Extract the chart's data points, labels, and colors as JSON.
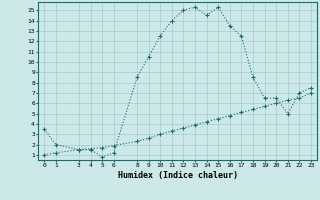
{
  "curve1_x": [
    0,
    1,
    3,
    4,
    5,
    6,
    8,
    9,
    10,
    11,
    12,
    13,
    14,
    15,
    16,
    17,
    18,
    19,
    20,
    21,
    22,
    23
  ],
  "curve1_y": [
    3.5,
    2.0,
    1.5,
    1.5,
    0.8,
    1.2,
    8.5,
    10.5,
    12.5,
    14.0,
    15.0,
    15.3,
    14.5,
    15.3,
    13.5,
    12.5,
    8.5,
    6.5,
    6.5,
    5.0,
    7.0,
    7.5
  ],
  "curve2_x": [
    0,
    1,
    3,
    4,
    5,
    6,
    8,
    9,
    10,
    11,
    12,
    13,
    14,
    15,
    16,
    17,
    18,
    19,
    20,
    21,
    22,
    23
  ],
  "curve2_y": [
    1.0,
    1.2,
    1.5,
    1.6,
    1.7,
    1.9,
    2.3,
    2.6,
    3.0,
    3.3,
    3.6,
    3.9,
    4.2,
    4.5,
    4.8,
    5.1,
    5.4,
    5.7,
    6.0,
    6.3,
    6.5,
    7.0
  ],
  "line_color": "#1a6b6b",
  "bg_color": "#cce8e8",
  "grid_color": "#a8cccc",
  "xlabel": "Humidex (Indice chaleur)",
  "xticks": [
    0,
    1,
    3,
    4,
    5,
    6,
    8,
    9,
    10,
    11,
    12,
    13,
    14,
    15,
    16,
    17,
    18,
    19,
    20,
    21,
    22,
    23
  ],
  "yticks": [
    1,
    2,
    3,
    4,
    5,
    6,
    7,
    8,
    9,
    10,
    11,
    12,
    13,
    14,
    15
  ],
  "xlim": [
    -0.5,
    23.5
  ],
  "ylim": [
    0.5,
    15.8
  ]
}
